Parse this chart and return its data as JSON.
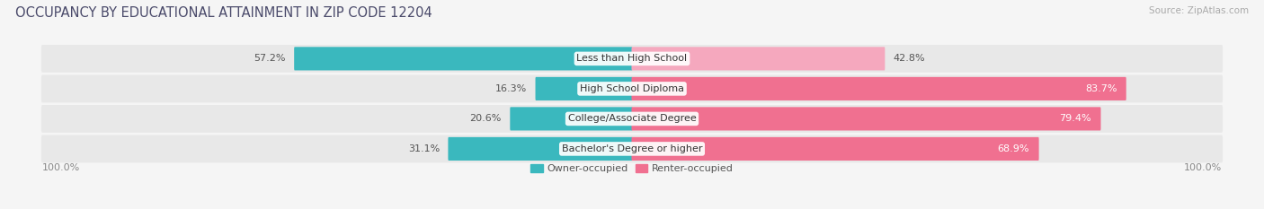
{
  "title": "OCCUPANCY BY EDUCATIONAL ATTAINMENT IN ZIP CODE 12204",
  "source": "Source: ZipAtlas.com",
  "categories": [
    "Less than High School",
    "High School Diploma",
    "College/Associate Degree",
    "Bachelor's Degree or higher"
  ],
  "owner_pct": [
    57.2,
    16.3,
    20.6,
    31.1
  ],
  "renter_pct": [
    42.8,
    83.7,
    79.4,
    68.9
  ],
  "owner_color": "#3ab8be",
  "renter_color_dark": "#f07090",
  "renter_color_light": "#f5a8be",
  "bg_color": "#f5f5f5",
  "bar_bg_color": "#e8e8e8",
  "title_fontsize": 10.5,
  "source_fontsize": 7.5,
  "label_fontsize": 8,
  "pct_fontsize": 8,
  "legend_fontsize": 8
}
